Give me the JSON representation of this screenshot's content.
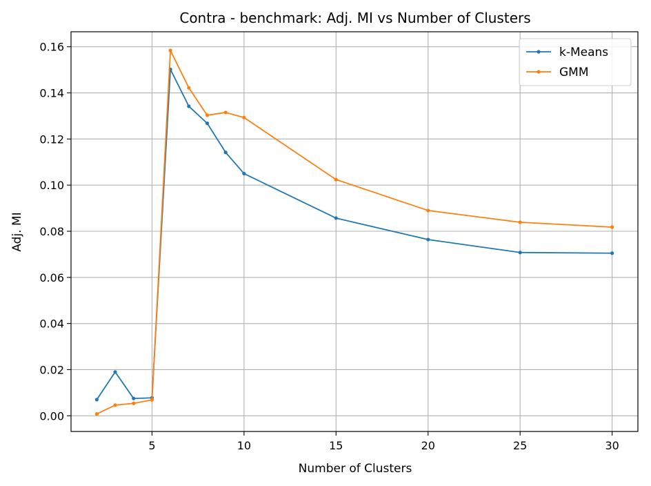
{
  "chart_data": {
    "type": "line",
    "title": "Contra - benchmark: Adj. MI vs Number of Clusters",
    "xlabel": "Number of Clusters",
    "ylabel": "Adj. MI",
    "xlim": [
      0.6,
      31.4
    ],
    "ylim": [
      -0.0068,
      0.1665
    ],
    "xticks": [
      5,
      10,
      15,
      20,
      25,
      30
    ],
    "yticks": [
      0.0,
      0.02,
      0.04,
      0.06,
      0.08,
      0.1,
      0.12,
      0.14,
      0.16
    ],
    "ytick_labels": [
      "0.00",
      "0.02",
      "0.04",
      "0.06",
      "0.08",
      "0.10",
      "0.12",
      "0.14",
      "0.16"
    ],
    "grid": true,
    "legend_position": "top-right",
    "x": [
      2,
      3,
      4,
      5,
      6,
      7,
      8,
      9,
      10,
      15,
      20,
      25,
      30
    ],
    "series": [
      {
        "name": "k-Means",
        "color": "#1f77b4",
        "values": [
          0.007,
          0.019,
          0.0075,
          0.0078,
          0.1502,
          0.1342,
          0.1268,
          0.1142,
          0.105,
          0.0857,
          0.0764,
          0.0708,
          0.0705
        ]
      },
      {
        "name": "GMM",
        "color": "#ff7f0e",
        "values": [
          0.0008,
          0.0046,
          0.0054,
          0.0069,
          0.1584,
          0.1422,
          0.1303,
          0.1315,
          0.1293,
          0.1024,
          0.089,
          0.0839,
          0.0818
        ]
      }
    ]
  }
}
